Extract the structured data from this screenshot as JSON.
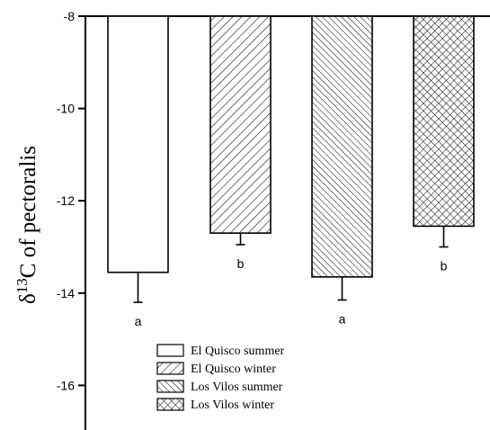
{
  "chart_data": {
    "type": "bar",
    "title": "",
    "xlabel": "",
    "ylabel": "δ13C of pectoralis",
    "ylabel_main": "δ",
    "ylabel_sup": "13",
    "ylabel_rest": "C of pectoralis",
    "ylim": [
      -17,
      -8
    ],
    "ytick_values": [
      -8,
      -10,
      -12,
      -14,
      -16
    ],
    "ytick_labels": [
      "-8",
      "-10",
      "-12",
      "-14",
      "-16"
    ],
    "grid": false,
    "legend_position": "bottom-center",
    "categories": [
      "El Quisco summer",
      "El Quisco winter",
      "Los Vilos summer",
      "Los Vilos winter"
    ],
    "values": [
      -13.55,
      -12.7,
      -13.65,
      -12.55
    ],
    "errors": [
      0.65,
      0.25,
      0.5,
      0.45
    ],
    "significance": [
      "a",
      "b",
      "a",
      "b"
    ],
    "patterns": [
      "none",
      "forward-hatch",
      "back-hatch",
      "crosshatch"
    ],
    "colors": {
      "bar_fill": "#ffffff",
      "stroke": "#000000"
    }
  }
}
